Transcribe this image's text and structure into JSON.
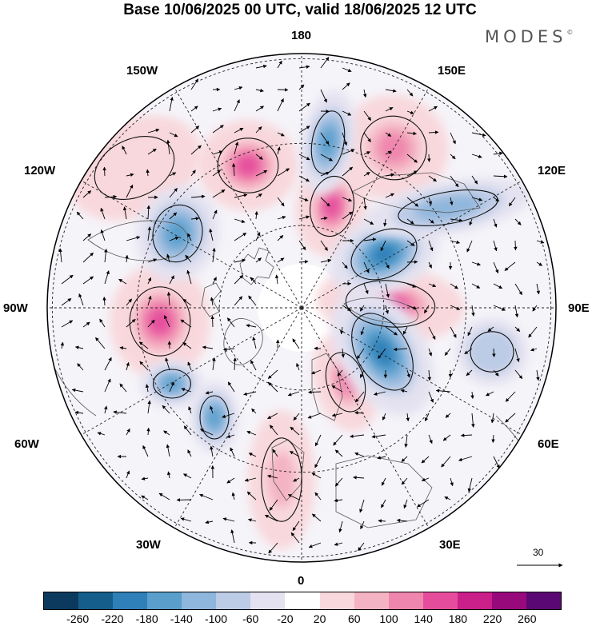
{
  "header": {
    "title": "Base 10/06/2025 00 UTC, valid 18/06/2025 12 UTC",
    "brand": "MODES",
    "brand_mark": "©"
  },
  "map": {
    "projection": "north-polar-stereographic",
    "longitude_labels": {
      "n180": "180",
      "w150": "150W",
      "e150": "150E",
      "w120": "120W",
      "e120": "120E",
      "w90": "90W",
      "e90": "90E",
      "w60": "60W",
      "e60": "60E",
      "w30": "30W",
      "e30": "30E",
      "s0": "0"
    },
    "reference_vector_label": "30",
    "anomaly_centers": [
      {
        "id": "pos-aleutian-west",
        "sign": "positive",
        "level": 80
      },
      {
        "id": "pos-bering",
        "sign": "positive",
        "level": 180
      },
      {
        "id": "pos-eastsiberia",
        "sign": "positive",
        "level": 180
      },
      {
        "id": "pos-kamchatka",
        "sign": "positive",
        "level": 140
      },
      {
        "id": "pos-hudson",
        "sign": "positive",
        "level": 180
      },
      {
        "id": "pos-scandinavia",
        "sign": "positive",
        "level": 140
      },
      {
        "id": "pos-siberia",
        "sign": "positive",
        "level": 180
      },
      {
        "id": "pos-europe",
        "sign": "positive",
        "level": 100
      },
      {
        "id": "neg-alaska",
        "sign": "negative",
        "level": -140
      },
      {
        "id": "neg-canada",
        "sign": "negative",
        "level": -140
      },
      {
        "id": "neg-laptev",
        "sign": "negative",
        "level": -180
      },
      {
        "id": "neg-kara",
        "sign": "negative",
        "level": -180
      },
      {
        "id": "neg-greenland",
        "sign": "negative",
        "level": -140
      },
      {
        "id": "neg-atlantic",
        "sign": "negative",
        "level": -140
      },
      {
        "id": "neg-yakutia",
        "sign": "negative",
        "level": -100
      },
      {
        "id": "neg-central-asia",
        "sign": "negative",
        "level": -60
      }
    ]
  },
  "colorbar": {
    "colors": [
      "#0b3a5e",
      "#155e8c",
      "#2f80b8",
      "#5a9fcc",
      "#8fb6dc",
      "#bccbe6",
      "#e4e2f0",
      "#ffffff",
      "#f8d8dc",
      "#f4b3c2",
      "#ef86ad",
      "#e54d9c",
      "#c9208a",
      "#98097c",
      "#5a0873"
    ],
    "ticks": [
      "-260",
      "-220",
      "-180",
      "-140",
      "-100",
      "-60",
      "-20",
      "20",
      "60",
      "100",
      "140",
      "180",
      "220",
      "260"
    ]
  }
}
